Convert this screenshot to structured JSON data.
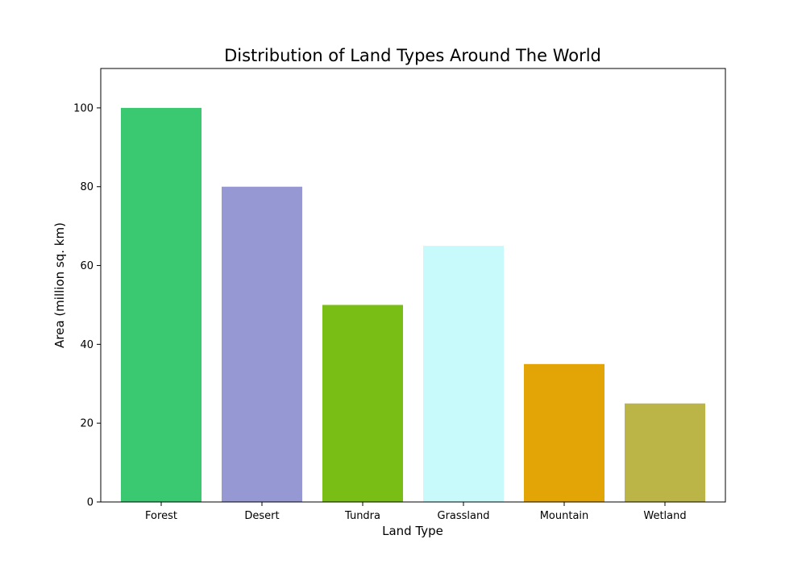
{
  "chart_data": {
    "type": "bar",
    "title": "Distribution of Land Types Around The World",
    "xlabel": "Land Type",
    "ylabel": "Area (million sq. km)",
    "categories": [
      "Forest",
      "Desert",
      "Tundra",
      "Grassland",
      "Mountain",
      "Wetland"
    ],
    "values": [
      100,
      80,
      50,
      65,
      35,
      25
    ],
    "colors": [
      "#3ac871",
      "#9698d4",
      "#78be14",
      "#c8fafc",
      "#e3a406",
      "#bbb447"
    ],
    "ylim": [
      0,
      110
    ],
    "yticks": [
      0,
      20,
      40,
      60,
      80,
      100
    ],
    "grid": false,
    "legend": "none"
  }
}
